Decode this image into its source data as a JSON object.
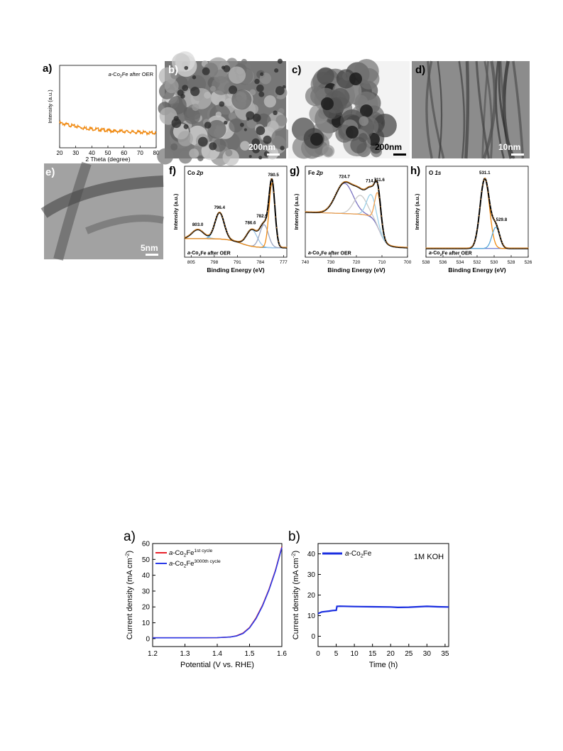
{
  "figure1": {
    "a": {
      "label": "a)",
      "legend_prefix": "a-",
      "legend_main": "Co",
      "legend_sub": "2",
      "legend_suffix": "Fe after OER",
      "color": "#f08a12",
      "chart_data": {
        "type": "line",
        "xlabel": "2 Theta (degree)",
        "ylabel": "Intensity (a.u.)",
        "xlim": [
          20,
          80
        ],
        "xticks": [
          "20",
          "30",
          "40",
          "50",
          "60",
          "70",
          "80"
        ],
        "x": [
          20,
          25,
          30,
          35,
          40,
          45,
          50,
          55,
          60,
          65,
          70,
          75,
          80
        ],
        "y": [
          0.3,
          0.28,
          0.26,
          0.24,
          0.23,
          0.22,
          0.21,
          0.2,
          0.2,
          0.19,
          0.19,
          0.18,
          0.18
        ]
      }
    },
    "b": {
      "label": "b)",
      "scale": "200nm"
    },
    "c": {
      "label": "c)",
      "scale": "200nm"
    },
    "d": {
      "label": "d)",
      "scale": "10nm"
    },
    "e": {
      "label": "e)",
      "scale": "5nm"
    },
    "f": {
      "label": "f)",
      "title_el": "Co ",
      "title_orb": "2p",
      "footer_prefix": "a-",
      "footer_main": "Co",
      "footer_sub": "2",
      "footer_suffix": "Fe after OER",
      "chart_data": {
        "type": "line",
        "xlabel": "Binding Energy (eV)",
        "ylabel": "Intensity (a.u.)",
        "xlim": [
          807,
          776
        ],
        "xticks": [
          "805",
          "798",
          "791",
          "784",
          "777"
        ],
        "peaks": [
          803.0,
          796.4,
          786.6,
          782.9,
          780.5
        ],
        "peak_labels": [
          "803.0",
          "796.4",
          "786.6",
          "782.9",
          "780.5"
        ]
      }
    },
    "g": {
      "label": "g)",
      "title_el": "Fe ",
      "title_orb": "2p",
      "footer_prefix": "a-",
      "footer_main": "Co",
      "footer_sub": "2",
      "footer_suffix": "Fe after OER",
      "chart_data": {
        "type": "line",
        "xlabel": "Binding Energy (eV)",
        "ylabel": "Intensity (a.u.)",
        "xlim": [
          740,
          700
        ],
        "xticks": [
          "740",
          "730",
          "720",
          "710",
          "700"
        ],
        "peaks": [
          724.7,
          714.2,
          711.6
        ],
        "peak_labels": [
          "724.7",
          "714.2",
          "711.6"
        ]
      }
    },
    "h": {
      "label": "h)",
      "title_el": "O ",
      "title_orb": "1s",
      "footer_prefix": "a-",
      "footer_main": "Co",
      "footer_sub": "2",
      "footer_suffix": "Fe after OER",
      "chart_data": {
        "type": "line",
        "xlabel": "Binding Energy (eV)",
        "ylabel": "Intensity (a.u.)",
        "xlim": [
          538,
          526
        ],
        "xticks": [
          "538",
          "536",
          "534",
          "532",
          "530",
          "528",
          "526"
        ],
        "peaks": [
          531.1,
          529.8
        ],
        "peak_labels": [
          "531.1",
          "529.8"
        ]
      }
    }
  },
  "figure2": {
    "a": {
      "label": "a)",
      "legend": [
        {
          "prefix": "a-",
          "main": "Co",
          "sub": "2",
          "suffix": "Fe",
          "sup": "1st cycle",
          "color": "#e8202a"
        },
        {
          "prefix": "a-",
          "main": "Co",
          "sub": "2",
          "suffix": "Fe",
          "sup": "3000th cycle",
          "color": "#2a3ae8"
        }
      ],
      "chart_data": {
        "type": "line",
        "xlabel": "Potential (V vs. RHE)",
        "ylabel_main": "Current density (mA cm",
        "ylabel_sup": "-2",
        "ylabel_end": ")",
        "xlim": [
          1.2,
          1.6
        ],
        "ylim": [
          -5,
          60
        ],
        "xticks": [
          "1.2",
          "1.3",
          "1.4",
          "1.5",
          "1.6"
        ],
        "yticks": [
          "0",
          "10",
          "20",
          "30",
          "40",
          "50",
          "60"
        ],
        "x": [
          1.2,
          1.3,
          1.4,
          1.44,
          1.46,
          1.48,
          1.5,
          1.52,
          1.54,
          1.56,
          1.58,
          1.6
        ],
        "series": [
          {
            "y": [
              0.5,
              0.5,
              0.6,
              1.0,
              1.8,
              3.5,
              7.0,
              13.0,
              21.0,
              31.0,
              43.0,
              58.0
            ]
          },
          {
            "y": [
              0.5,
              0.5,
              0.6,
              1.0,
              1.7,
              3.3,
              6.8,
              12.6,
              20.6,
              30.6,
              42.6,
              57.5
            ]
          }
        ]
      }
    },
    "b": {
      "label": "b)",
      "condition": "1M KOH",
      "legend": {
        "prefix": "a-",
        "main": "Co",
        "sub": "2",
        "suffix": "Fe",
        "color": "#1a2ee0"
      },
      "chart_data": {
        "type": "line",
        "xlabel": "Time (h)",
        "ylabel_main": "Current density (mA cm",
        "ylabel_sup": "-2",
        "ylabel_end": ")",
        "xlim": [
          0,
          36
        ],
        "ylim": [
          -5,
          45
        ],
        "xticks": [
          "0",
          "5",
          "10",
          "15",
          "20",
          "25",
          "30",
          "35"
        ],
        "yticks": [
          "0",
          "10",
          "20",
          "30",
          "40"
        ],
        "x": [
          0,
          1,
          2,
          3,
          4,
          5,
          5.2,
          6,
          10,
          15,
          20,
          22,
          25,
          30,
          33,
          36
        ],
        "y": [
          11,
          11.8,
          12,
          12.2,
          12.5,
          12.6,
          14.5,
          14.6,
          14.4,
          14.3,
          14.2,
          14.0,
          14.1,
          14.5,
          14.3,
          14.2
        ]
      }
    }
  }
}
